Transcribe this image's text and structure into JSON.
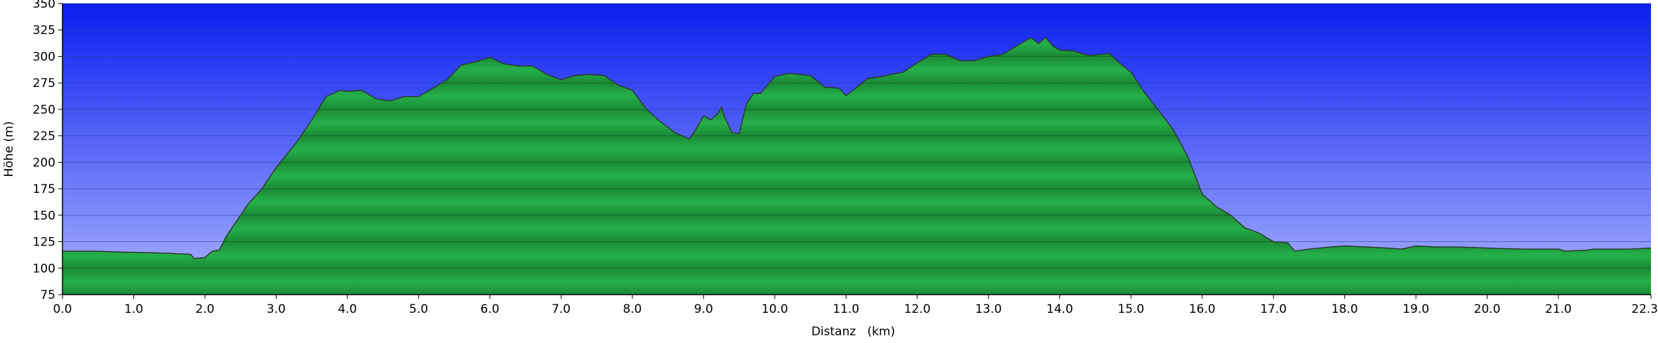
{
  "chart_data": {
    "type": "area",
    "title": "",
    "xlabel": "Distanz   (km)",
    "ylabel": "Höhe (m)",
    "xlim": [
      0,
      22.3
    ],
    "ylim": [
      75,
      350
    ],
    "x_ticks": [
      "0.0",
      "1.0",
      "2.0",
      "3.0",
      "4.0",
      "5.0",
      "6.0",
      "7.0",
      "8.0",
      "9.0",
      "10.0",
      "11.0",
      "12.0",
      "13.0",
      "14.0",
      "15.0",
      "16.0",
      "17.0",
      "18.0",
      "19.0",
      "20.0",
      "21.0",
      "22.3"
    ],
    "y_ticks": [
      "75",
      "100",
      "125",
      "150",
      "175",
      "200",
      "225",
      "250",
      "275",
      "300",
      "325",
      "350"
    ],
    "grid": true,
    "legend": "none",
    "colors": {
      "area": "#22a845",
      "area_stripe": "#1a8a36",
      "outline": "#2b3a2b",
      "sky_top": "#0a1ef0",
      "sky_bottom": "#aab4ff"
    },
    "series": [
      {
        "x": [
          0.0,
          0.5,
          0.9,
          1.0,
          1.5,
          1.8,
          1.85,
          2.0,
          2.1,
          2.2,
          2.3,
          2.5,
          2.6,
          2.8,
          3.0,
          3.3,
          3.5,
          3.7,
          3.9,
          4.0,
          4.2,
          4.4,
          4.6,
          4.8,
          5.0,
          5.2,
          5.4,
          5.6,
          5.8,
          6.0,
          6.2,
          6.4,
          6.6,
          6.8,
          7.0,
          7.2,
          7.4,
          7.6,
          7.8,
          8.0,
          8.2,
          8.4,
          8.6,
          8.8,
          8.9,
          9.0,
          9.1,
          9.2,
          9.25,
          9.3,
          9.4,
          9.5,
          9.6,
          9.7,
          9.8,
          10.0,
          10.2,
          10.5,
          10.7,
          10.9,
          11.0,
          11.1,
          11.3,
          11.5,
          11.7,
          11.8,
          12.0,
          12.2,
          12.4,
          12.6,
          12.8,
          13.0,
          13.2,
          13.4,
          13.6,
          13.7,
          13.8,
          13.9,
          14.0,
          14.2,
          14.4,
          14.6,
          14.7,
          14.8,
          15.0,
          15.2,
          15.4,
          15.6,
          15.8,
          16.0,
          16.2,
          16.4,
          16.6,
          16.8,
          17.0,
          17.2,
          17.3,
          17.5,
          17.8,
          18.0,
          18.3,
          18.6,
          18.8,
          19.0,
          19.3,
          19.6,
          20.0,
          20.5,
          21.0,
          21.1,
          21.4,
          21.5,
          22.0,
          22.3
        ],
        "y": [
          116,
          116,
          115,
          115,
          114,
          113,
          109,
          110,
          116,
          117,
          130,
          150,
          160,
          175,
          195,
          220,
          240,
          262,
          268,
          267,
          268,
          260,
          258,
          262,
          262,
          270,
          278,
          292,
          295,
          299,
          293,
          291,
          291,
          283,
          278,
          282,
          283,
          282,
          273,
          268,
          250,
          238,
          228,
          222,
          232,
          244,
          240,
          246,
          252,
          242,
          228,
          227,
          255,
          265,
          265,
          281,
          284,
          282,
          271,
          270,
          263,
          268,
          279,
          281,
          284,
          285,
          294,
          302,
          302,
          296,
          296,
          300,
          302,
          310,
          318,
          312,
          318,
          310,
          306,
          305,
          301,
          302,
          303,
          296,
          285,
          265,
          248,
          230,
          205,
          170,
          158,
          150,
          138,
          133,
          125,
          124,
          116,
          118,
          120,
          121,
          120,
          119,
          118,
          121,
          120,
          120,
          119,
          118,
          118,
          116,
          117,
          118,
          118,
          119
        ]
      }
    ]
  }
}
